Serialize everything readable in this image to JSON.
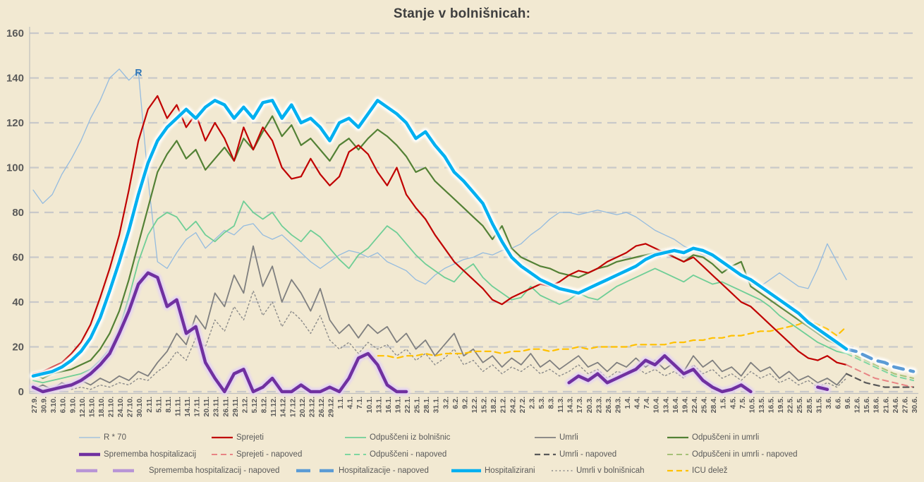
{
  "title": "Stanje v bolnišnicah:",
  "colors": {
    "background": "#f2e9d2",
    "grid": "#c9c9c9",
    "axis": "#bfbfbf",
    "title_text": "#3f3f3f",
    "tick_text": "#595959",
    "r_annotation": "#2e75b6"
  },
  "chart_data": {
    "type": "line",
    "title": "Stanje v bolnišnicah:",
    "xlabel": "",
    "ylabel": "",
    "ylim": [
      0,
      160
    ],
    "y_ticks": [
      0,
      20,
      40,
      60,
      80,
      100,
      120,
      140,
      160
    ],
    "grid": "dashed-horizontal",
    "legend_position": "bottom",
    "annotation": {
      "text": "R",
      "x_index": 10.2,
      "value": 141
    },
    "x_tick_labels": [
      "27.9.",
      "30.9.",
      "3.10.",
      "6.10.",
      "9.10.",
      "12.10.",
      "15.10.",
      "18.10.",
      "21.10.",
      "24.10.",
      "27.10.",
      "30.10.",
      "2.11.",
      "5.11.",
      "8.11.",
      "11.11.",
      "14.11.",
      "17.11.",
      "20.11.",
      "23.11.",
      "26.11.",
      "29.11.",
      "2.12.",
      "5.12.",
      "8.12.",
      "11.12.",
      "14.12.",
      "17.12.",
      "20.12.",
      "23.12.",
      "26.12.",
      "29.12.",
      "1.1.",
      "4.1.",
      "7.1.",
      "10.1.",
      "13.1.",
      "16.1.",
      "19.1.",
      "22.1.",
      "25.1.",
      "28.1.",
      "31.1.",
      "3.2.",
      "6.2.",
      "9.2.",
      "12.2.",
      "15.2.",
      "18.2.",
      "21.2.",
      "24.2.",
      "27.2.",
      "2.3.",
      "5.3.",
      "8.3.",
      "11.3.",
      "14.3.",
      "17.3.",
      "20.3.",
      "23.3.",
      "26.3.",
      "29.3.",
      "1.4.",
      "4.4.",
      "7.4.",
      "10.4.",
      "13.4.",
      "16.4.",
      "19.4.",
      "22.4.",
      "25.4.",
      "28.4.",
      "1.5.",
      "4.5.",
      "7.5.",
      "10.5.",
      "13.5.",
      "16.5.",
      "19.5.",
      "22.5.",
      "25.5.",
      "28.5.",
      "31.5.",
      "3.6.",
      "6.6.",
      "9.6.",
      "12.6.",
      "15.6.",
      "18.6.",
      "21.6.",
      "24.6.",
      "27.6.",
      "30.6."
    ],
    "series": [
      {
        "id": "r-70",
        "name": "R * 70",
        "color": "#94bbdf",
        "width": 1.3,
        "dash": "solid",
        "z": 1,
        "start": 0,
        "values": [
          90,
          84,
          88,
          97,
          104,
          112,
          122,
          130,
          140,
          144,
          139,
          143,
          95,
          58,
          55,
          62,
          68,
          71,
          64,
          68,
          72,
          70,
          74,
          75,
          70,
          68,
          70,
          66,
          62,
          58,
          55,
          58,
          61,
          63,
          62,
          60,
          62,
          58,
          56,
          54,
          50,
          48,
          52,
          55,
          57,
          59,
          60,
          62,
          61,
          63,
          64,
          66,
          70,
          73,
          77,
          80,
          80,
          79,
          80,
          81,
          80,
          79,
          80,
          78,
          75,
          72,
          70,
          68,
          65,
          63,
          61,
          60,
          58,
          55,
          52,
          48,
          47,
          50,
          53,
          50,
          47,
          46,
          55,
          66,
          58,
          50
        ]
      },
      {
        "id": "sprememba-hospitalizacij",
        "name": "Sprememba hospitalizacij",
        "color": "#7030a0",
        "width": 4.5,
        "dash": "solid",
        "glow": "#e3d2f2",
        "z": 14,
        "start": 0,
        "values": [
          2,
          0,
          1,
          2,
          3,
          5,
          8,
          12,
          17,
          26,
          36,
          48,
          53,
          51,
          38,
          41,
          26,
          29,
          13,
          6,
          0,
          8,
          10,
          0,
          2,
          6,
          0,
          0,
          3,
          0,
          0,
          2,
          0,
          6,
          15,
          17,
          12,
          3,
          0,
          0,
          null,
          null,
          null,
          null,
          null,
          null,
          null,
          null,
          null,
          null,
          null,
          null,
          null,
          null,
          null,
          null,
          4,
          7,
          5,
          8,
          4,
          6,
          8,
          10,
          14,
          12,
          16,
          12,
          8,
          10,
          5,
          2,
          0,
          1,
          3,
          0,
          null,
          null,
          null,
          null,
          null,
          null,
          2,
          1,
          null,
          null
        ]
      },
      {
        "id": "sprememba-hospitalizacij-napoved",
        "name": "Sprememba hospitalizacij - napoved",
        "color": "#b894d6",
        "width": 4.5,
        "dash": "dash",
        "legend_dash": "30 22",
        "z": 12,
        "start": 85,
        "values": []
      },
      {
        "id": "sprejeti",
        "name": "Sprejeti",
        "color": "#c00000",
        "width": 2.2,
        "dash": "solid",
        "z": 7,
        "start": 0,
        "values": [
          8,
          9,
          11,
          13,
          17,
          22,
          30,
          42,
          55,
          70,
          90,
          112,
          126,
          132,
          122,
          128,
          118,
          124,
          112,
          120,
          113,
          103,
          118,
          108,
          118,
          112,
          100,
          95,
          96,
          104,
          97,
          92,
          96,
          107,
          110,
          106,
          98,
          92,
          100,
          88,
          82,
          77,
          70,
          64,
          58,
          54,
          50,
          46,
          41,
          39,
          42,
          44,
          46,
          48,
          47,
          49,
          52,
          54,
          53,
          55,
          58,
          60,
          62,
          65,
          66,
          64,
          62,
          60,
          58,
          60,
          56,
          52,
          48,
          44,
          40,
          38,
          34,
          30,
          26,
          22,
          18,
          15,
          14,
          16,
          13,
          12
        ]
      },
      {
        "id": "sprejeti-napoved",
        "name": "Sprejeti - napoved",
        "color": "#e88484",
        "width": 2,
        "dash": "dash",
        "z": 8,
        "start": 85,
        "values": [
          12,
          10,
          8,
          6,
          5,
          4,
          3,
          2
        ]
      },
      {
        "id": "hospitalizacije-napoved",
        "name": "Hospitalizacije - napoved",
        "color": "#5b9bd5",
        "width": 4.5,
        "dash": "dash",
        "legend_dash": "20 13",
        "glow": "#ffffff",
        "z": 13,
        "start": 85,
        "values": [
          19,
          18,
          16,
          14,
          13,
          11,
          10,
          9
        ]
      },
      {
        "id": "odpusceni-iz-bolnisnic",
        "name": "Odpuščeni iz bolnišnic",
        "color": "#6fce96",
        "width": 1.8,
        "dash": "solid",
        "z": 5,
        "start": 0,
        "values": [
          5,
          4,
          5,
          6,
          7,
          8,
          10,
          14,
          19,
          28,
          42,
          58,
          70,
          77,
          80,
          78,
          72,
          76,
          70,
          67,
          71,
          74,
          85,
          80,
          77,
          80,
          74,
          70,
          67,
          72,
          69,
          64,
          59,
          55,
          61,
          64,
          69,
          74,
          71,
          66,
          61,
          57,
          54,
          51,
          49,
          54,
          57,
          51,
          47,
          44,
          41,
          42,
          47,
          43,
          41,
          39,
          41,
          44,
          42,
          41,
          44,
          47,
          49,
          51,
          53,
          55,
          53,
          51,
          49,
          52,
          50,
          48,
          49,
          47,
          45,
          43,
          41,
          38,
          34,
          31,
          28,
          25,
          22,
          20,
          18,
          17
        ]
      },
      {
        "id": "odpusceni-napoved",
        "name": "Odpuščeni - napoved",
        "color": "#7fd6a0",
        "width": 2,
        "dash": "dash",
        "z": 9,
        "start": 85,
        "values": [
          17,
          15,
          13,
          11,
          9,
          7,
          6,
          5
        ]
      },
      {
        "id": "hospitalizirani",
        "name": "Hospitalizirani",
        "color": "#00b0f0",
        "width": 4.5,
        "dash": "solid",
        "glow": "#ffffff",
        "z": 15,
        "start": 0,
        "values": [
          7,
          8,
          9,
          11,
          14,
          18,
          24,
          33,
          45,
          58,
          72,
          88,
          102,
          112,
          118,
          122,
          126,
          122,
          127,
          130,
          128,
          122,
          127,
          122,
          129,
          130,
          122,
          128,
          120,
          122,
          118,
          112,
          120,
          122,
          118,
          124,
          130,
          127,
          124,
          120,
          113,
          116,
          110,
          105,
          98,
          94,
          89,
          84,
          75,
          67,
          60,
          56,
          53,
          50,
          48,
          46,
          45,
          44,
          46,
          48,
          50,
          52,
          54,
          56,
          59,
          61,
          62,
          63,
          62,
          64,
          63,
          61,
          58,
          55,
          52,
          50,
          47,
          44,
          41,
          38,
          35,
          31,
          28,
          25,
          22,
          19
        ]
      },
      {
        "id": "umrli",
        "name": "Umrli",
        "color": "#7f7f7f",
        "width": 1.8,
        "dash": "solid",
        "z": 2,
        "start": 0,
        "values": [
          1,
          3,
          1,
          4,
          2,
          5,
          3,
          6,
          4,
          7,
          5,
          9,
          7,
          13,
          18,
          26,
          21,
          34,
          28,
          44,
          38,
          52,
          44,
          65,
          47,
          56,
          40,
          50,
          44,
          36,
          46,
          32,
          26,
          30,
          24,
          30,
          26,
          29,
          22,
          26,
          19,
          23,
          16,
          21,
          26,
          16,
          19,
          13,
          16,
          11,
          15,
          12,
          17,
          11,
          14,
          10,
          13,
          16,
          11,
          13,
          9,
          13,
          11,
          15,
          11,
          14,
          10,
          13,
          9,
          16,
          11,
          14,
          9,
          11,
          7,
          13,
          9,
          11,
          6,
          9,
          5,
          7,
          4,
          6,
          3,
          8
        ]
      },
      {
        "id": "umrli-napoved",
        "name": "Umrli - napoved",
        "color": "#595959",
        "width": 2.2,
        "dash": "dash",
        "z": 10,
        "start": 85,
        "values": [
          8,
          6,
          4,
          3,
          2,
          2,
          2,
          2
        ]
      },
      {
        "id": "umrli-v-bolnisnicah",
        "name": "Umrli v bolnišnicah",
        "color": "#8a8a8a",
        "width": 1.4,
        "dash": "dot",
        "z": 3,
        "start": 4,
        "values": [
          1,
          2,
          1,
          3,
          2,
          4,
          3,
          6,
          5,
          9,
          12,
          18,
          14,
          24,
          20,
          32,
          27,
          38,
          32,
          45,
          34,
          40,
          29,
          36,
          32,
          26,
          34,
          23,
          19,
          22,
          17,
          22,
          19,
          21,
          16,
          19,
          14,
          17,
          12,
          15,
          19,
          12,
          14,
          9,
          12,
          8,
          11,
          9,
          12,
          8,
          10,
          7,
          9,
          12,
          8,
          10,
          6,
          9,
          8,
          11,
          8,
          10,
          7,
          9,
          6,
          12,
          8,
          10,
          6,
          8,
          5,
          9,
          6,
          8,
          4,
          6,
          3,
          5,
          2,
          4,
          2,
          6
        ]
      },
      {
        "id": "odpusceni-in-umrli",
        "name": "Odpuščeni in umrli",
        "color": "#538135",
        "width": 2.2,
        "dash": "solid",
        "z": 6,
        "start": 0,
        "values": [
          8,
          6,
          8,
          9,
          10,
          12,
          14,
          19,
          26,
          36,
          50,
          66,
          82,
          98,
          106,
          112,
          104,
          108,
          99,
          104,
          109,
          103,
          113,
          108,
          116,
          123,
          114,
          119,
          110,
          113,
          108,
          103,
          110,
          113,
          108,
          113,
          117,
          114,
          110,
          105,
          98,
          100,
          94,
          90,
          86,
          82,
          78,
          74,
          68,
          74,
          64,
          60,
          58,
          56,
          55,
          53,
          52,
          51,
          53,
          55,
          56,
          58,
          59,
          60,
          61,
          62,
          63,
          60,
          58,
          61,
          60,
          57,
          53,
          56,
          58,
          47,
          44,
          41,
          38,
          35,
          32,
          29,
          26,
          23,
          21,
          18
        ]
      },
      {
        "id": "odpusceni-in-umrli-napoved",
        "name": "Odpuščeni in umrli - napoved",
        "color": "#a6c178",
        "width": 2,
        "dash": "dash",
        "z": 11,
        "start": 85,
        "values": [
          18,
          16,
          14,
          12,
          10,
          8,
          7,
          6
        ]
      },
      {
        "id": "icu-delez",
        "name": "ICU delež",
        "color": "#ffc000",
        "width": 2.2,
        "dash": "dash",
        "z": 4,
        "start": 34,
        "values": [
          15,
          15,
          16,
          16,
          15,
          16,
          16,
          17,
          16,
          17,
          17,
          17,
          18,
          18,
          18,
          17,
          18,
          18,
          19,
          19,
          18,
          19,
          19,
          20,
          19,
          20,
          20,
          20,
          20,
          21,
          21,
          21,
          21,
          22,
          22,
          23,
          23,
          24,
          24,
          25,
          25,
          26,
          27,
          27,
          28,
          29,
          30,
          32,
          30,
          28,
          25,
          29
        ]
      }
    ]
  }
}
